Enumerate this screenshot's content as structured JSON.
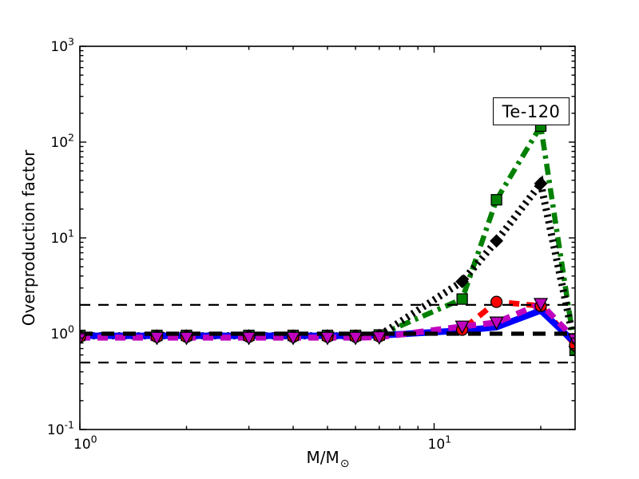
{
  "annotation": {
    "label": "Te-120"
  },
  "colors": {
    "background": "#ffffff",
    "axis": "#000000",
    "text": "#000000"
  },
  "chart_data": {
    "type": "line",
    "title": "",
    "xlabel": "M/M⊙",
    "xlabel_main": "M/M",
    "xlabel_sub": "⊙",
    "ylabel": "Overproduction factor",
    "grid": false,
    "legend_position": "upper right inside plot",
    "x_axis": {
      "scale": "log",
      "min": 1,
      "max": 25,
      "major_ticks": [
        {
          "value": 1,
          "base": "10",
          "exp": "0"
        },
        {
          "value": 10,
          "base": "10",
          "exp": "1"
        }
      ]
    },
    "y_axis": {
      "scale": "log",
      "min": 0.1,
      "max": 1000,
      "major_ticks": [
        {
          "value": 1000,
          "base": "10",
          "exp": "3"
        },
        {
          "value": 100,
          "base": "10",
          "exp": "2"
        },
        {
          "value": 10,
          "base": "10",
          "exp": "1"
        },
        {
          "value": 1,
          "base": "10",
          "exp": "0"
        },
        {
          "value": 0.1,
          "base": "10",
          "exp": "-1"
        }
      ]
    },
    "x": [
      1.0,
      1.65,
      2.0,
      3.0,
      4.0,
      5.0,
      6.0,
      7.0,
      12.0,
      15.0,
      20.0,
      25.0
    ],
    "series": [
      {
        "name": "green-dashdot-squares",
        "color": "#008000",
        "linestyle": "dashdot",
        "linewidth": 6.5,
        "marker": "square",
        "markersize": 13,
        "values": [
          0.96,
          0.96,
          0.96,
          0.96,
          0.96,
          0.96,
          0.96,
          0.97,
          2.3,
          25.0,
          147.0,
          0.67
        ]
      },
      {
        "name": "black-dotted-diamonds",
        "color": "#000000",
        "linestyle": "dotted",
        "linewidth": 9,
        "marker": "diamond",
        "markersize": 15,
        "values": [
          0.95,
          0.95,
          0.95,
          0.95,
          0.95,
          0.95,
          0.95,
          0.96,
          3.5,
          9.3,
          37.0,
          0.73
        ]
      },
      {
        "name": "red-dashed-circles",
        "color": "#ff0000",
        "linestyle": "dashed",
        "linewidth": 7,
        "marker": "circle",
        "markersize": 14,
        "values": [
          0.93,
          0.93,
          0.93,
          0.93,
          0.93,
          0.93,
          0.93,
          0.94,
          1.1,
          2.15,
          1.95,
          0.76
        ]
      },
      {
        "name": "blue-solid",
        "color": "#0000ff",
        "linestyle": "solid",
        "linewidth": 8,
        "marker": "none",
        "markersize": 0,
        "values": [
          0.95,
          0.95,
          0.95,
          0.95,
          0.95,
          0.95,
          0.95,
          0.96,
          1.08,
          1.17,
          1.75,
          0.8
        ]
      },
      {
        "name": "magenta-dashed-triangles",
        "color": "#bf00bf",
        "linestyle": "dashed",
        "linewidth": 7.5,
        "marker": "triangle-down",
        "markersize": 16,
        "values": [
          0.91,
          0.91,
          0.91,
          0.91,
          0.91,
          0.91,
          0.91,
          0.92,
          1.19,
          1.31,
          2.05,
          0.87
        ]
      }
    ],
    "reference_lines": [
      {
        "value": 2.0,
        "color": "#000000",
        "style": "dashed-thin"
      },
      {
        "value": 1.0,
        "color": "#000000",
        "style": "dashed-thick"
      },
      {
        "value": 0.5,
        "color": "#000000",
        "style": "dashed-thin"
      }
    ]
  }
}
